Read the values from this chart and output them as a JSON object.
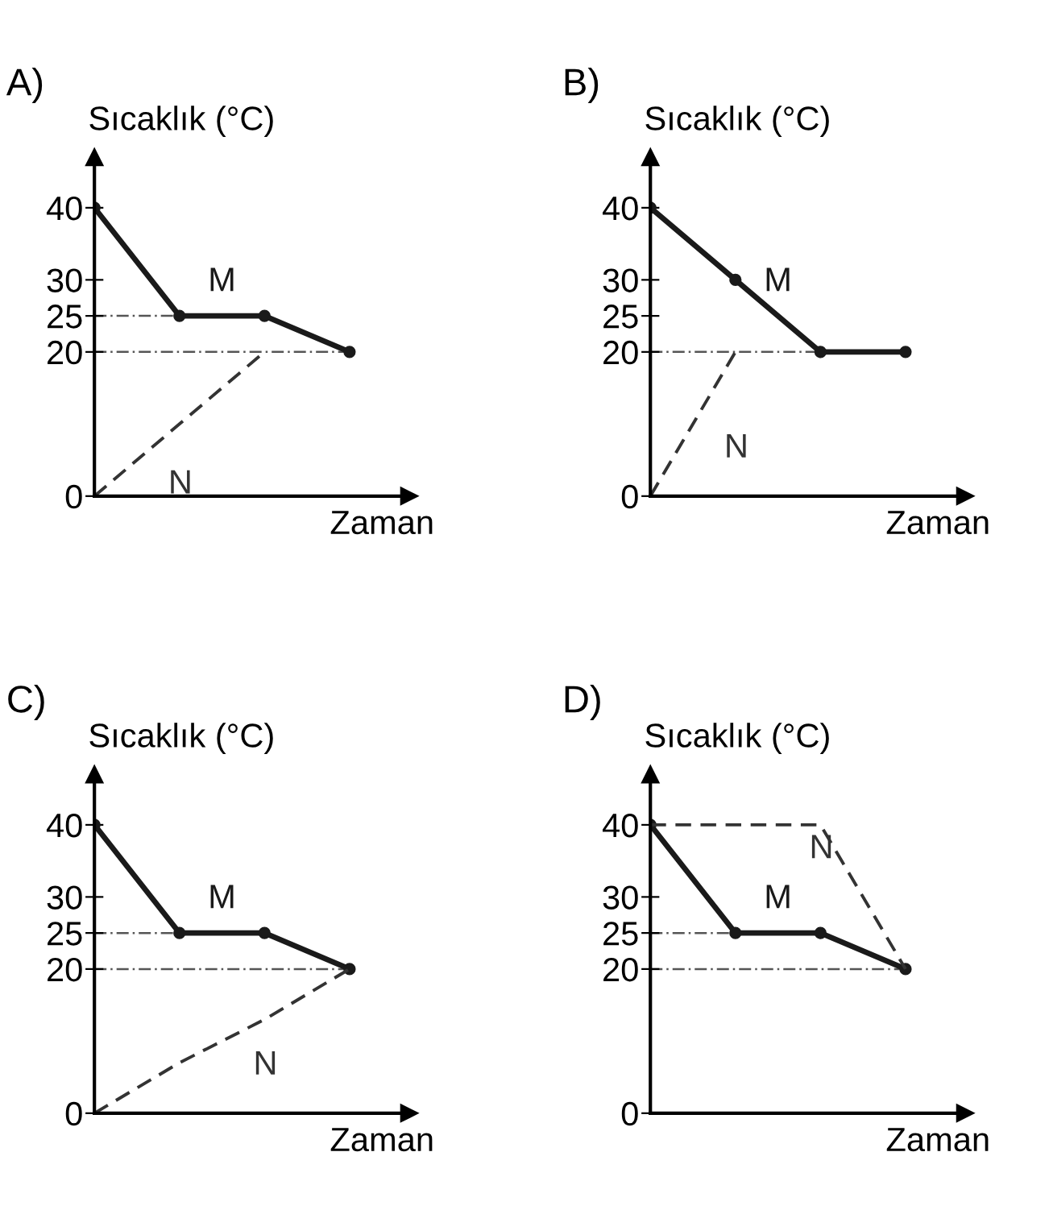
{
  "chart_data": [
    {
      "type": "line",
      "title": "A)",
      "ylabel": "Sıcaklık (°C)",
      "xlabel": "Zaman",
      "categories": [
        null,
        null,
        null,
        null
      ],
      "ylim": [
        0,
        47
      ],
      "yticks": [
        0,
        20,
        25,
        30,
        40
      ],
      "grid": false,
      "legend": false,
      "series": [
        {
          "name": "M",
          "color": "#1a1a1a",
          "line_style": "solid",
          "marker": "circle",
          "values": [
            40,
            25,
            25,
            20
          ]
        },
        {
          "name": "N",
          "color": "#333333",
          "line_style": "dashed",
          "marker": "none",
          "values": [
            0,
            10,
            20,
            null
          ]
        }
      ],
      "ref_lines": [
        {
          "axis": "y",
          "value": 25,
          "line_style": "dashdot",
          "color": "#555555"
        },
        {
          "axis": "y",
          "value": 20,
          "line_style": "dashdot",
          "color": "#555555"
        }
      ]
    },
    {
      "type": "line",
      "title": "B)",
      "ylabel": "Sıcaklık (°C)",
      "xlabel": "Zaman",
      "categories": [
        null,
        null,
        null,
        null
      ],
      "ylim": [
        0,
        47
      ],
      "yticks": [
        0,
        20,
        25,
        30,
        40
      ],
      "grid": false,
      "legend": false,
      "series": [
        {
          "name": "M",
          "color": "#1a1a1a",
          "line_style": "solid",
          "marker": "circle",
          "values": [
            40,
            30,
            20,
            20
          ]
        },
        {
          "name": "N",
          "color": "#333333",
          "line_style": "dashed",
          "marker": "none",
          "values": [
            0,
            20,
            null,
            null
          ]
        }
      ],
      "ref_lines": [
        {
          "axis": "y",
          "value": 20,
          "line_style": "dashdot",
          "color": "#555555"
        }
      ]
    },
    {
      "type": "line",
      "title": "C)",
      "ylabel": "Sıcaklık (°C)",
      "xlabel": "Zaman",
      "categories": [
        null,
        null,
        null,
        null
      ],
      "ylim": [
        0,
        47
      ],
      "yticks": [
        0,
        20,
        25,
        30,
        40
      ],
      "grid": false,
      "legend": false,
      "series": [
        {
          "name": "M",
          "color": "#1a1a1a",
          "line_style": "solid",
          "marker": "circle",
          "values": [
            40,
            25,
            25,
            20
          ]
        },
        {
          "name": "N",
          "color": "#333333",
          "line_style": "dashed",
          "marker": "none",
          "values": [
            0,
            7,
            13,
            20
          ]
        }
      ],
      "ref_lines": [
        {
          "axis": "y",
          "value": 25,
          "line_style": "dashdot",
          "color": "#555555"
        },
        {
          "axis": "y",
          "value": 20,
          "line_style": "dashdot",
          "color": "#555555"
        }
      ]
    },
    {
      "type": "line",
      "title": "D)",
      "ylabel": "Sıcaklık (°C)",
      "xlabel": "Zaman",
      "categories": [
        null,
        null,
        null,
        null
      ],
      "ylim": [
        0,
        47
      ],
      "yticks": [
        0,
        20,
        25,
        30,
        40
      ],
      "grid": false,
      "legend": false,
      "series": [
        {
          "name": "M",
          "color": "#1a1a1a",
          "line_style": "solid",
          "marker": "circle",
          "values": [
            40,
            25,
            25,
            20
          ]
        },
        {
          "name": "N",
          "color": "#333333",
          "line_style": "dashed",
          "marker": "none",
          "values": [
            40,
            40,
            40,
            20
          ]
        }
      ],
      "ref_lines": [
        {
          "axis": "y",
          "value": 25,
          "line_style": "dashdot",
          "color": "#555555"
        },
        {
          "axis": "y",
          "value": 20,
          "line_style": "dashdot",
          "color": "#555555"
        }
      ]
    }
  ]
}
